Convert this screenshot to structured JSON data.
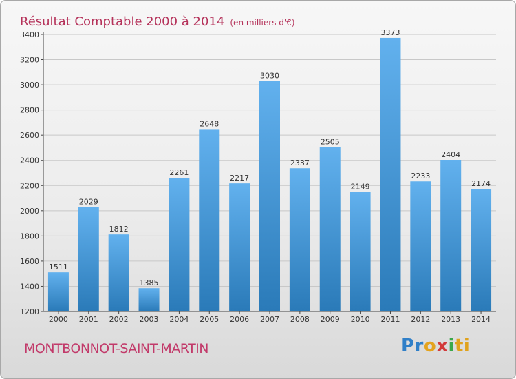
{
  "header": {
    "title": "Résultat Comptable 2000 à 2014",
    "unit": "(en milliers d'€)"
  },
  "footer": {
    "commune": "MONTBONNOT-SAINT-MARTIN",
    "logo": {
      "text": "Proxiti",
      "parts": [
        "Pr",
        "o",
        "x",
        "i",
        "ti"
      ],
      "colors": [
        "#2f7fc8",
        "#e4a31e",
        "#d23a3a",
        "#3aa84a",
        "#e0a21c"
      ]
    }
  },
  "chart_data": {
    "type": "bar",
    "title": "Résultat Comptable 2000 à 2014",
    "subtitle": "(en milliers d'€)",
    "xlabel": "",
    "ylabel": "",
    "categories": [
      "2000",
      "2001",
      "2002",
      "2003",
      "2004",
      "2005",
      "2006",
      "2007",
      "2008",
      "2009",
      "2010",
      "2011",
      "2012",
      "2013",
      "2014"
    ],
    "values": [
      1511,
      2029,
      1812,
      1385,
      2261,
      2648,
      2217,
      3030,
      2337,
      2505,
      2149,
      3373,
      2233,
      2404,
      2174
    ],
    "ylim": [
      1200,
      3400
    ],
    "yticks": [
      1200,
      1400,
      1600,
      1800,
      2000,
      2200,
      2400,
      2600,
      2800,
      3000,
      3200,
      3400
    ],
    "grid": true,
    "bar_color": "#4a9ee0",
    "bar_color_light": "#62b1ee",
    "bar_color_dark": "#2a7ab8",
    "grid_color": "#c8c8c8",
    "value_labels": true,
    "legend": false
  }
}
